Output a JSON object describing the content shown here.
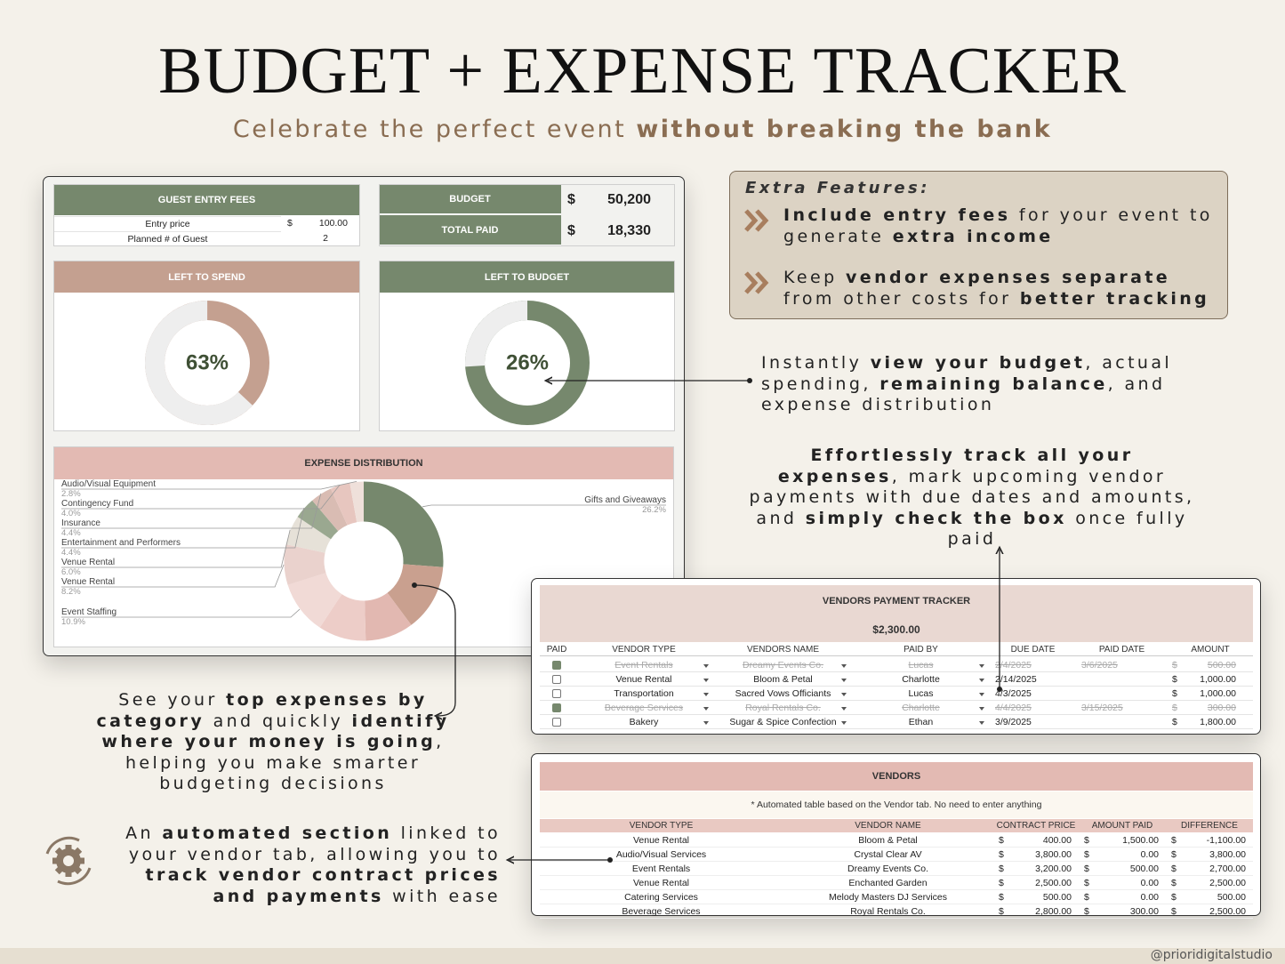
{
  "header": {
    "title": "BUDGET + EXPENSE TRACKER",
    "subtitle": [
      {
        "text": "Celebrate the perfect event ",
        "bold": false
      },
      {
        "text": "without breaking the bank",
        "bold": true
      }
    ]
  },
  "guest_entry_fees": {
    "title": "GUEST ENTRY FEES",
    "rows": [
      [
        "Entry price",
        "$",
        "100.00"
      ],
      [
        "Planned # of Guest",
        null,
        "2"
      ]
    ]
  },
  "totals": [
    {
      "label": "BUDGET",
      "currency": "$",
      "value": "50,200"
    },
    {
      "label": "TOTAL PAID",
      "currency": "$",
      "value": "18,330"
    }
  ],
  "left_to_spend": {
    "title": "LEFT TO SPEND",
    "percent": 63,
    "label": "63%",
    "color": "#c4a090"
  },
  "left_to_budget": {
    "title": "LEFT TO BUDGET",
    "percent": 26,
    "label": "26%",
    "color": "#76886d"
  },
  "expense_distribution": {
    "title": "EXPENSE DISTRIBUTION",
    "slices": [
      {
        "name": "Gifts and Giveaways",
        "value": 26.2,
        "label": "26.2%",
        "color": "#76886d"
      },
      {
        "name": null,
        "value": 13.6,
        "label": null,
        "color": "#c9a08f"
      },
      {
        "name": null,
        "value": 9.8,
        "label": null,
        "color": "#e2b8b1"
      },
      {
        "name": null,
        "value": 9.7,
        "label": null,
        "color": "#edcdc8"
      },
      {
        "name": "Event Staffing",
        "value": 10.9,
        "label": "10.9%",
        "color": "#f1dad6"
      },
      {
        "name": "Venue Rental",
        "value": 8.2,
        "label": "8.2%",
        "color": "#ead2cd"
      },
      {
        "name": "Venue Rental",
        "value": 6.0,
        "label": "6.0%",
        "color": "#e6e1d8"
      },
      {
        "name": "Entertainment and Performers",
        "value": 4.4,
        "label": "4.4%",
        "color": "#9aa890"
      },
      {
        "name": "Insurance",
        "value": 4.4,
        "label": "4.4%",
        "color": "#d9bcb3"
      },
      {
        "name": "Contingency Fund",
        "value": 4.0,
        "label": "4.0%",
        "color": "#e7c6bf"
      },
      {
        "name": "Audio/Visual Equipment",
        "value": 2.8,
        "label": "2.8%",
        "color": "#efe0da"
      }
    ]
  },
  "extra_features": {
    "title": "Extra Features:",
    "items": [
      [
        {
          "text": "Include entry fees",
          "bold": true
        },
        {
          "text": " for your event to generate ",
          "bold": false
        },
        {
          "text": "extra income",
          "bold": true
        }
      ],
      [
        {
          "text": "Keep ",
          "bold": false
        },
        {
          "text": "vendor expenses separate",
          "bold": true
        },
        {
          "text": " from other costs for ",
          "bold": false
        },
        {
          "text": "better tracking",
          "bold": true
        }
      ]
    ]
  },
  "callouts": {
    "dashboard": [
      {
        "text": "Instantly ",
        "bold": false
      },
      {
        "text": "view your budget",
        "bold": true
      },
      {
        "text": ", actual spending, ",
        "bold": false
      },
      {
        "text": "remaining balance",
        "bold": true
      },
      {
        "text": ", and expense distribution",
        "bold": false
      }
    ],
    "tracker": [
      {
        "text": "Effortlessly track all your expenses",
        "bold": true
      },
      {
        "text": ", mark upcoming vendor payments with due dates and amounts, and ",
        "bold": false
      },
      {
        "text": "simply check the box",
        "bold": true
      },
      {
        "text": " once fully paid",
        "bold": false
      }
    ],
    "expenses": [
      {
        "text": "See your ",
        "bold": false
      },
      {
        "text": "top expenses by category",
        "bold": true
      },
      {
        "text": " and quickly ",
        "bold": false
      },
      {
        "text": "identify where your money is going",
        "bold": true
      },
      {
        "text": ", helping you make smarter budgeting decisions",
        "bold": false
      }
    ],
    "vendors": [
      {
        "text": "An ",
        "bold": false
      },
      {
        "text": "automated section",
        "bold": true
      },
      {
        "text": " linked to your vendor tab, allowing you to ",
        "bold": false
      },
      {
        "text": "track vendor contract prices and payments",
        "bold": true
      },
      {
        "text": " with ease",
        "bold": false
      }
    ]
  },
  "payment_tracker": {
    "title": "VENDORS PAYMENT TRACKER",
    "total": "$2,300.00",
    "currency": "$",
    "columns": [
      "PAID",
      "VENDOR TYPE",
      "VENDORS NAME",
      "PAID BY",
      "DUE DATE",
      "PAID DATE",
      "AMOUNT"
    ],
    "rows": [
      {
        "paid": true,
        "vendor_type": "Event Rentals",
        "vendor_name": "Dreamy Events Co.",
        "paid_by": "Lucas",
        "due_date": "2/4/2025",
        "paid_date": "3/6/2025",
        "amount": "500.00"
      },
      {
        "paid": false,
        "vendor_type": "Venue Rental",
        "vendor_name": "Bloom & Petal",
        "paid_by": "Charlotte",
        "due_date": "2/14/2025",
        "paid_date": null,
        "amount": "1,000.00"
      },
      {
        "paid": false,
        "vendor_type": "Transportation",
        "vendor_name": "Sacred Vows Officiants",
        "paid_by": "Lucas",
        "due_date": "4/3/2025",
        "paid_date": null,
        "amount": "1,000.00"
      },
      {
        "paid": true,
        "vendor_type": "Beverage Services",
        "vendor_name": "Royal Rentals Co.",
        "paid_by": "Charlotte",
        "due_date": "4/4/2025",
        "paid_date": "3/15/2025",
        "amount": "300.00"
      },
      {
        "paid": false,
        "vendor_type": "Bakery",
        "vendor_name": "Sugar & Spice Confection",
        "paid_by": "Ethan",
        "due_date": "3/9/2025",
        "paid_date": null,
        "amount": "1,800.00"
      }
    ]
  },
  "vendors": {
    "title": "VENDORS",
    "note": "* Automated table based on the Vendor tab. No need to enter anything",
    "currency": "$",
    "columns": [
      "VENDOR TYPE",
      "VENDOR NAME",
      "CONTRACT PRICE",
      "AMOUNT PAID",
      "DIFFERENCE"
    ],
    "rows": [
      [
        "Venue Rental",
        "Bloom & Petal",
        "400.00",
        "1,500.00",
        "-1,100.00"
      ],
      [
        "Audio/Visual Services",
        "Crystal Clear AV",
        "3,800.00",
        "0.00",
        "3,800.00"
      ],
      [
        "Event Rentals",
        "Dreamy Events Co.",
        "3,200.00",
        "500.00",
        "2,700.00"
      ],
      [
        "Venue Rental",
        "Enchanted Garden",
        "2,500.00",
        "0.00",
        "2,500.00"
      ],
      [
        "Catering Services",
        "Melody Masters DJ Services",
        "500.00",
        "0.00",
        "500.00"
      ],
      [
        "Beverage Services",
        "Royal Rentals Co.",
        "2,800.00",
        "300.00",
        "2,500.00"
      ]
    ]
  },
  "footer": {
    "handle": "@prioridigitalstudio"
  }
}
